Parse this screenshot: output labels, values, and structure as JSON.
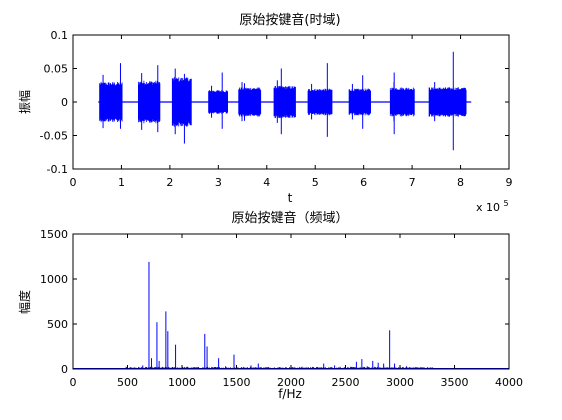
{
  "chart_data": [
    {
      "type": "line",
      "title": "原始按键音(时域)",
      "xlabel": "t",
      "ylabel": "振幅",
      "x_exponent_label": "x 10",
      "x_exponent": "5",
      "xlim": [
        0,
        9
      ],
      "ylim": [
        -0.1,
        0.1
      ],
      "x_ticks": [
        0,
        1,
        2,
        3,
        4,
        5,
        6,
        7,
        8,
        9
      ],
      "x_tick_labels": [
        "0",
        "1",
        "2",
        "3",
        "4",
        "5",
        "6",
        "7",
        "8",
        "9"
      ],
      "y_ticks": [
        -0.1,
        -0.05,
        0,
        0.05,
        0.1
      ],
      "y_tick_labels": [
        "-0.1",
        "-0.05",
        "0",
        "0.05",
        "0.1"
      ],
      "grid": false,
      "line_color": "#0000ff",
      "baseline_span": [
        0.52,
        8.22
      ],
      "bursts": [
        {
          "start": 0.55,
          "end": 1.02,
          "amp": 0.03,
          "spike_x": 0.98,
          "spike_top": 0.058,
          "spike_bottom": -0.04
        },
        {
          "start": 1.35,
          "end": 1.8,
          "amp": 0.032,
          "spike_x": 1.75,
          "spike_top": 0.055,
          "spike_bottom": -0.045
        },
        {
          "start": 2.05,
          "end": 2.45,
          "amp": 0.037,
          "spike_x": 2.3,
          "spike_top": 0.042,
          "spike_bottom": -0.062
        },
        {
          "start": 2.8,
          "end": 3.2,
          "amp": 0.018,
          "spike_x": 3.08,
          "spike_top": 0.044,
          "spike_bottom": -0.04
        },
        {
          "start": 3.42,
          "end": 3.88,
          "amp": 0.022,
          "spike_x": 3.54,
          "spike_top": 0.028,
          "spike_bottom": -0.028
        },
        {
          "start": 4.15,
          "end": 4.6,
          "amp": 0.024,
          "spike_x": 4.3,
          "spike_top": 0.05,
          "spike_bottom": -0.048
        },
        {
          "start": 4.85,
          "end": 5.35,
          "amp": 0.02,
          "spike_x": 5.25,
          "spike_top": 0.058,
          "spike_bottom": -0.052
        },
        {
          "start": 5.7,
          "end": 6.15,
          "amp": 0.02,
          "spike_x": 5.98,
          "spike_top": 0.04,
          "spike_bottom": -0.04
        },
        {
          "start": 6.55,
          "end": 7.05,
          "amp": 0.022,
          "spike_x": 6.63,
          "spike_top": 0.044,
          "spike_bottom": -0.048
        },
        {
          "start": 7.35,
          "end": 8.12,
          "amp": 0.022,
          "spike_x": 7.85,
          "spike_top": 0.075,
          "spike_bottom": -0.072
        }
      ]
    },
    {
      "type": "line",
      "title": "原始按键音（频域）",
      "xlabel": "f/Hz",
      "ylabel": "幅度",
      "xlim": [
        0,
        4000
      ],
      "ylim": [
        0,
        1500
      ],
      "x_ticks": [
        0,
        500,
        1000,
        1500,
        2000,
        2500,
        3000,
        3500,
        4000
      ],
      "x_tick_labels": [
        "0",
        "500",
        "1000",
        "1500",
        "2000",
        "2500",
        "3000",
        "3500",
        "4000"
      ],
      "y_ticks": [
        0,
        500,
        1000,
        1500
      ],
      "y_tick_labels": [
        "0",
        "500",
        "1000",
        "1500"
      ],
      "grid": false,
      "line_color": "#0000ff",
      "peaks": [
        {
          "x": 520,
          "y": 15
        },
        {
          "x": 640,
          "y": 40
        },
        {
          "x": 697,
          "y": 1190
        },
        {
          "x": 720,
          "y": 120
        },
        {
          "x": 770,
          "y": 520
        },
        {
          "x": 790,
          "y": 90
        },
        {
          "x": 852,
          "y": 640
        },
        {
          "x": 870,
          "y": 420
        },
        {
          "x": 941,
          "y": 270
        },
        {
          "x": 1050,
          "y": 25
        },
        {
          "x": 1209,
          "y": 390
        },
        {
          "x": 1230,
          "y": 250
        },
        {
          "x": 1336,
          "y": 120
        },
        {
          "x": 1400,
          "y": 30
        },
        {
          "x": 1477,
          "y": 160
        },
        {
          "x": 1633,
          "y": 40
        },
        {
          "x": 1700,
          "y": 60
        },
        {
          "x": 1900,
          "y": 15
        },
        {
          "x": 2000,
          "y": 20
        },
        {
          "x": 2100,
          "y": 25
        },
        {
          "x": 2180,
          "y": 20
        },
        {
          "x": 2300,
          "y": 60
        },
        {
          "x": 2400,
          "y": 40
        },
        {
          "x": 2450,
          "y": 25
        },
        {
          "x": 2600,
          "y": 80
        },
        {
          "x": 2650,
          "y": 110
        },
        {
          "x": 2700,
          "y": 30
        },
        {
          "x": 2750,
          "y": 90
        },
        {
          "x": 2800,
          "y": 70
        },
        {
          "x": 2850,
          "y": 60
        },
        {
          "x": 2905,
          "y": 430
        },
        {
          "x": 2950,
          "y": 60
        },
        {
          "x": 3000,
          "y": 40
        },
        {
          "x": 3060,
          "y": 30
        },
        {
          "x": 3150,
          "y": 20
        },
        {
          "x": 3300,
          "y": 15
        },
        {
          "x": 3500,
          "y": 10
        },
        {
          "x": 3700,
          "y": 8
        }
      ]
    }
  ]
}
